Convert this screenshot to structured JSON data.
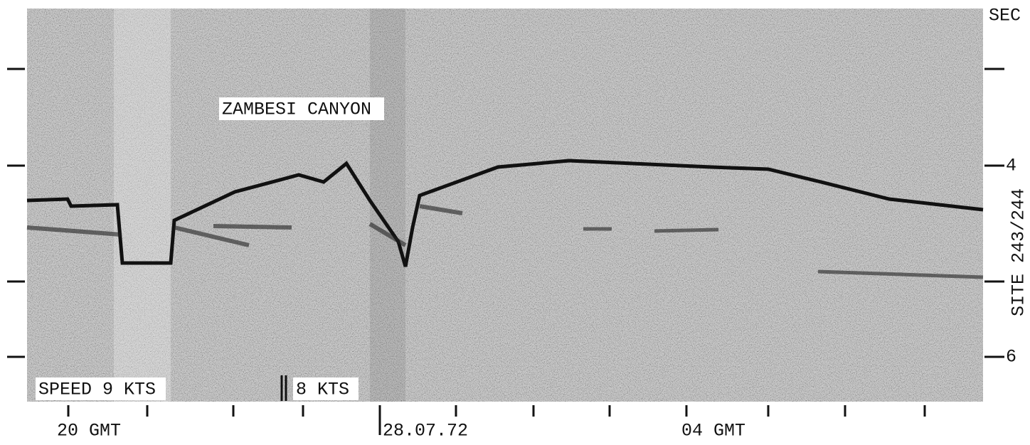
{
  "header": {
    "unit": "SEC",
    "site": "SITE 243/244"
  },
  "depth_labels": [
    "4",
    "6"
  ],
  "annotations": {
    "feature": "ZAMBESI CANYON",
    "speed_1": "SPEED 9 KTS",
    "speed_2": "8 KTS"
  },
  "time_labels": [
    "20 GMT",
    "28.07.72",
    "04 GMT"
  ]
}
